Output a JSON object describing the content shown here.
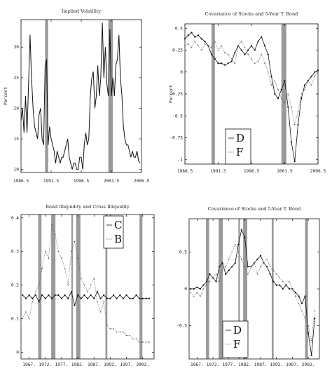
{
  "chart_data": [
    {
      "type": "line",
      "title": "Implied Volatility",
      "ylabel": "Percent",
      "xlabel": "",
      "x_ticks": [
        "1986.5",
        "1991.5",
        "1996.5",
        "2001.5",
        "2006.5"
      ],
      "y_ticks": [
        "10",
        "15",
        "20",
        "25",
        "30"
      ],
      "xlim": [
        1986.5,
        2006.5
      ],
      "ylim": [
        9.5,
        34.5
      ],
      "shaded_periods": [
        [
          1990.5,
          1991.0
        ],
        [
          2001.0,
          2001.75
        ]
      ],
      "series": [
        {
          "x": [
            1986.5,
            1986.75,
            1987.0,
            1987.25,
            1987.5,
            1987.75,
            1988.0,
            1988.25,
            1988.5,
            1988.75,
            1989.0,
            1989.25,
            1989.5,
            1989.75,
            1990.0,
            1990.25,
            1990.5,
            1990.75,
            1991.0,
            1991.25,
            1991.5,
            1991.75,
            1992.0,
            1992.25,
            1992.5,
            1992.75,
            1993.0,
            1993.25,
            1993.5,
            1993.75,
            1994.0,
            1994.25,
            1994.5,
            1994.75,
            1995.0,
            1995.25,
            1995.5,
            1995.75,
            1996.0,
            1996.25,
            1996.5,
            1996.75,
            1997.0,
            1997.25,
            1997.5,
            1997.75,
            1998.0,
            1998.25,
            1998.5,
            1998.75,
            1999.0,
            1999.25,
            1999.5,
            1999.75,
            2000.0,
            2000.25,
            2000.5,
            2000.75,
            2001.0,
            2001.25,
            2001.5,
            2001.75,
            2002.0,
            2002.25,
            2002.5,
            2002.75,
            2003.0,
            2003.25,
            2003.5,
            2003.75,
            2004.0,
            2004.25,
            2004.5,
            2004.75,
            2005.0,
            2005.25,
            2005.5,
            2005.75,
            2006.0,
            2006.25
          ],
          "values": [
            18,
            20,
            16,
            22,
            16,
            24,
            32,
            25,
            20,
            17,
            16,
            15,
            19,
            20,
            15,
            14,
            27,
            28,
            14,
            17,
            15,
            14,
            13,
            11,
            13,
            12,
            11,
            12,
            12,
            13,
            14,
            15,
            12,
            11,
            10,
            11,
            11,
            10,
            10,
            12,
            12,
            10,
            14,
            16,
            14,
            15,
            22,
            25,
            26,
            20,
            22,
            27,
            22,
            25,
            34,
            25,
            30,
            24,
            22,
            33,
            22,
            25,
            22,
            27,
            28,
            32,
            25,
            22,
            17,
            15,
            14,
            14,
            13,
            12,
            13,
            12,
            12,
            13,
            11.5,
            11
          ]
        }
      ]
    },
    {
      "type": "line",
      "title": "Covariance of Stocks and 5-Year T. Bond",
      "ylabel": "Percent",
      "xlabel": "",
      "x_ticks": [
        "1986.5",
        "1991.5",
        "1996.5",
        "2001.5",
        "2006.5"
      ],
      "y_ticks": [
        "0.5",
        "0.25",
        "0",
        "-0.25",
        "-0.5",
        "-0.75",
        "-1"
      ],
      "xlim": [
        1986.5,
        2006.5
      ],
      "ylim": [
        -1.05,
        0.55
      ],
      "shaded_periods": [
        [
          1990.5,
          1991.0
        ],
        [
          2001.0,
          2001.75
        ]
      ],
      "legend": [
        "D",
        "F"
      ],
      "series": [
        {
          "name": "D",
          "x": [
            1986.5,
            1987.0,
            1987.5,
            1988.0,
            1988.5,
            1989.0,
            1989.5,
            1990.0,
            1990.5,
            1991.0,
            1991.5,
            1992.0,
            1992.5,
            1993.0,
            1993.5,
            1994.0,
            1994.5,
            1995.0,
            1995.5,
            1996.0,
            1996.5,
            1997.0,
            1997.5,
            1998.0,
            1998.5,
            1999.0,
            1999.5,
            2000.0,
            2000.5,
            2001.0,
            2001.5,
            2002.0,
            2002.5,
            2003.0,
            2003.5,
            2004.0,
            2004.5,
            2005.0,
            2005.5,
            2006.0,
            2006.5
          ],
          "values": [
            0.38,
            0.42,
            0.45,
            0.4,
            0.42,
            0.38,
            0.35,
            0.3,
            0.2,
            0.15,
            0.1,
            0.1,
            0.08,
            0.1,
            0.12,
            0.22,
            0.3,
            0.25,
            0.2,
            0.25,
            0.3,
            0.25,
            0.35,
            0.4,
            0.3,
            0.2,
            -0.05,
            -0.25,
            -0.3,
            -0.2,
            -0.1,
            -0.4,
            -0.8,
            -1.02,
            -0.6,
            -0.3,
            -0.15,
            -0.1,
            -0.05,
            0.0,
            0.02
          ]
        },
        {
          "name": "F",
          "x": [
            1986.5,
            1987.0,
            1987.5,
            1988.0,
            1988.5,
            1989.0,
            1989.5,
            1990.0,
            1990.5,
            1991.0,
            1991.5,
            1992.0,
            1992.5,
            1993.0,
            1993.5,
            1994.0,
            1994.5,
            1995.0,
            1995.5,
            1996.0,
            1996.5,
            1997.0,
            1997.5,
            1998.0,
            1998.5,
            1999.0,
            1999.5,
            2000.0,
            2000.5,
            2001.0,
            2001.5,
            2002.0,
            2002.5,
            2003.0,
            2003.5,
            2004.0,
            2004.5,
            2005.0,
            2005.5,
            2006.0,
            2006.5
          ],
          "values": [
            0.3,
            0.32,
            0.28,
            0.35,
            0.3,
            0.25,
            0.32,
            0.3,
            0.28,
            0.35,
            0.25,
            0.3,
            0.22,
            0.2,
            0.15,
            0.1,
            0.3,
            0.35,
            0.28,
            0.2,
            0.15,
            0.1,
            0.12,
            0.2,
            0.1,
            0.0,
            -0.15,
            -0.1,
            -0.2,
            -0.3,
            -0.35,
            -0.25,
            -0.4,
            -0.6,
            -0.45,
            -0.25,
            -0.2,
            -0.1,
            -0.15,
            -0.05,
            0.0
          ]
        }
      ]
    },
    {
      "type": "line",
      "title": "Bond Illiquidity and Cross Illiquidity",
      "ylabel": "",
      "xlabel": "",
      "x_ticks": [
        "1967.",
        "1972.",
        "1977.",
        "1982.",
        "1987.",
        "1992.",
        "1997.",
        "2002."
      ],
      "y_ticks": [
        "0",
        "0.1",
        "0.2",
        "0.3",
        "0.4"
      ],
      "xlim": [
        1964.5,
        2005.5
      ],
      "ylim": [
        -0.02,
        0.41
      ],
      "shaded_periods": [
        [
          1969.8,
          1970.8
        ],
        [
          1973.8,
          1975.1
        ],
        [
          1980.0,
          1980.5
        ],
        [
          1981.5,
          1982.8
        ],
        [
          1990.5,
          1991.1
        ],
        [
          2001.0,
          2001.9
        ]
      ],
      "legend": [
        "C",
        "B"
      ],
      "series": [
        {
          "name": "C",
          "x": [
            1965.0,
            1966.0,
            1967.0,
            1968.0,
            1969.0,
            1970.0,
            1971.0,
            1972.0,
            1973.0,
            1974.0,
            1975.0,
            1976.0,
            1977.0,
            1978.0,
            1979.0,
            1980.0,
            1981.0,
            1982.0,
            1983.0,
            1984.0,
            1985.0,
            1986.0,
            1987.0,
            1988.0,
            1989.0,
            1990.0,
            1991.0,
            1992.0,
            1993.0,
            1994.0,
            1995.0,
            1996.0,
            1997.0,
            1998.0,
            1999.0,
            2000.0,
            2001.0,
            2002.0,
            2003.0,
            2004.0
          ],
          "values": [
            0.17,
            0.16,
            0.17,
            0.16,
            0.17,
            0.15,
            0.17,
            0.16,
            0.17,
            0.16,
            0.17,
            0.17,
            0.16,
            0.17,
            0.16,
            0.18,
            0.14,
            0.17,
            0.16,
            0.17,
            0.16,
            0.17,
            0.16,
            0.18,
            0.16,
            0.17,
            0.16,
            0.16,
            0.17,
            0.16,
            0.17,
            0.16,
            0.17,
            0.16,
            0.16,
            0.17,
            0.16,
            0.16,
            0.16,
            0.16
          ]
        },
        {
          "name": "B",
          "x": [
            1965.0,
            1966.0,
            1967.0,
            1968.0,
            1969.0,
            1970.0,
            1971.0,
            1972.0,
            1973.0,
            1974.0,
            1975.0,
            1976.0,
            1977.0,
            1978.0,
            1979.0,
            1980.0,
            1981.0,
            1982.0,
            1983.0,
            1984.0,
            1985.0,
            1986.0,
            1987.0,
            1988.0,
            1989.0,
            1990.0,
            1991.0,
            1992.0,
            1993.0,
            1994.0,
            1995.0,
            1996.0,
            1997.0,
            1998.0,
            1999.0,
            2000.0,
            2001.0,
            2002.0,
            2003.0,
            2004.0
          ],
          "values": [
            0.1,
            0.12,
            0.1,
            0.15,
            0.18,
            0.2,
            0.25,
            0.3,
            0.28,
            0.38,
            0.35,
            0.3,
            0.28,
            0.25,
            0.2,
            0.3,
            0.33,
            0.28,
            0.22,
            0.2,
            0.18,
            0.2,
            0.22,
            0.15,
            0.12,
            0.15,
            0.08,
            0.07,
            0.07,
            0.06,
            0.06,
            0.06,
            0.05,
            0.05,
            0.04,
            0.04,
            0.03,
            0.03,
            0.03,
            0.03
          ]
        }
      ]
    },
    {
      "type": "line",
      "title": "Covariance of Stocks and 5-Year T. Bond",
      "ylabel": "",
      "xlabel": "",
      "x_ticks": [
        "1967.",
        "1972.",
        "1977.",
        "1982.",
        "1987.",
        "1992.",
        "1997.",
        "2002."
      ],
      "y_ticks": [
        "0.5",
        "0",
        "-0.5"
      ],
      "xlim": [
        1964.5,
        2005.5
      ],
      "ylim": [
        -0.95,
        0.95
      ],
      "shaded_periods": [
        [
          1969.8,
          1970.8
        ],
        [
          1973.8,
          1975.1
        ],
        [
          1980.0,
          1980.5
        ],
        [
          1981.5,
          1982.8
        ],
        [
          1990.5,
          1991.1
        ],
        [
          2001.0,
          2001.9
        ]
      ],
      "legend": [
        "D",
        "F"
      ],
      "series": [
        {
          "name": "D",
          "x": [
            1965.0,
            1966.0,
            1967.0,
            1968.0,
            1969.0,
            1970.0,
            1971.0,
            1972.0,
            1973.0,
            1974.0,
            1975.0,
            1976.0,
            1977.0,
            1978.0,
            1979.0,
            1980.0,
            1981.0,
            1982.0,
            1983.0,
            1984.0,
            1985.0,
            1986.0,
            1987.0,
            1988.0,
            1989.0,
            1990.0,
            1991.0,
            1992.0,
            1993.0,
            1994.0,
            1995.0,
            1996.0,
            1997.0,
            1998.0,
            1999.0,
            2000.0,
            2001.0,
            2002.0,
            2003.0,
            2004.0
          ],
          "values": [
            0.0,
            0.0,
            0.02,
            0.0,
            0.05,
            0.1,
            0.2,
            0.15,
            0.1,
            0.3,
            0.35,
            0.2,
            0.25,
            0.3,
            0.35,
            0.6,
            0.8,
            0.7,
            0.3,
            0.3,
            0.35,
            0.4,
            0.45,
            0.35,
            0.3,
            0.2,
            0.1,
            0.05,
            0.05,
            0.0,
            0.05,
            0.0,
            0.0,
            -0.05,
            -0.1,
            -0.2,
            -0.1,
            -0.6,
            -0.9,
            -0.4
          ]
        },
        {
          "name": "F",
          "x": [
            1965.0,
            1966.0,
            1967.0,
            1968.0,
            1969.0,
            1970.0,
            1971.0,
            1972.0,
            1973.0,
            1974.0,
            1975.0,
            1976.0,
            1977.0,
            1978.0,
            1979.0,
            1980.0,
            1981.0,
            1982.0,
            1983.0,
            1984.0,
            1985.0,
            1986.0,
            1987.0,
            1988.0,
            1989.0,
            1990.0,
            1991.0,
            1992.0,
            1993.0,
            1994.0,
            1995.0,
            1996.0,
            1997.0,
            1998.0,
            1999.0,
            2000.0,
            2001.0,
            2002.0,
            2003.0,
            2004.0
          ],
          "values": [
            -0.05,
            -0.1,
            -0.05,
            -0.1,
            0.0,
            0.05,
            0.1,
            0.15,
            0.2,
            0.1,
            0.25,
            0.3,
            0.4,
            0.5,
            0.6,
            0.5,
            0.4,
            0.3,
            0.2,
            0.3,
            0.35,
            0.2,
            0.3,
            0.35,
            0.4,
            0.3,
            0.25,
            0.2,
            0.15,
            0.1,
            0.05,
            0.1,
            0.0,
            -0.1,
            -0.2,
            -0.3,
            -0.4,
            -0.5,
            -0.7,
            -0.3
          ]
        }
      ]
    }
  ]
}
